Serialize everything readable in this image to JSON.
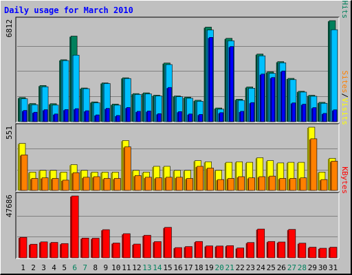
{
  "chart_data": [
    {
      "panel": "hits",
      "type": "bar",
      "title": "Daily usage for March 2010",
      "ymax_label": "6812",
      "ylabel_parts": [
        "Pages",
        "/",
        "Files",
        "/",
        "Hits"
      ],
      "ylim": [
        0,
        6812
      ],
      "grid": true,
      "series": [
        {
          "name": "Hits",
          "color": "#00805c",
          "values": [
            1630,
            1225,
            2440,
            1215,
            4175,
            5770,
            2270,
            1335,
            2615,
            1185,
            2960,
            1895,
            1945,
            1785,
            3955,
            1735,
            1650,
            1445,
            6375,
            925,
            5620,
            1515,
            2340,
            4560,
            3360,
            4050,
            2920,
            2050,
            1780,
            1305,
            6812
          ]
        },
        {
          "name": "Files",
          "color": "#00c0ff",
          "values": [
            1545,
            1145,
            2355,
            1120,
            4120,
            4485,
            2225,
            1275,
            2575,
            1115,
            2910,
            1840,
            1875,
            1735,
            3850,
            1685,
            1580,
            1375,
            6180,
            845,
            5455,
            1435,
            2255,
            4440,
            3260,
            3970,
            2835,
            1995,
            1715,
            1240,
            6200
          ]
        },
        {
          "name": "Pages",
          "color": "#0000ff",
          "values": [
            760,
            640,
            810,
            520,
            820,
            880,
            740,
            460,
            900,
            420,
            960,
            700,
            720,
            540,
            2310,
            680,
            520,
            490,
            5685,
            610,
            5070,
            700,
            1290,
            3210,
            2980,
            3420,
            1270,
            1180,
            950,
            560,
            800
          ]
        }
      ]
    },
    {
      "panel": "visits",
      "type": "bar",
      "ymax_label": "551",
      "ylabel_parts": [
        "Sites",
        "/",
        "Visits"
      ],
      "ylim": [
        0,
        551
      ],
      "grid": true,
      "series": [
        {
          "name": "Visits",
          "color": "#ffff00",
          "values": [
            410,
            160,
            175,
            175,
            160,
            225,
            175,
            160,
            160,
            160,
            435,
            175,
            160,
            210,
            210,
            175,
            175,
            260,
            250,
            175,
            245,
            250,
            245,
            285,
            260,
            240,
            245,
            245,
            551,
            160,
            280
          ]
        },
        {
          "name": "Sites",
          "color": "#ff8000",
          "values": [
            310,
            105,
            110,
            105,
            90,
            155,
            115,
            120,
            105,
            105,
            380,
            130,
            115,
            110,
            115,
            115,
            105,
            210,
            195,
            95,
            105,
            120,
            110,
            120,
            125,
            105,
            105,
            110,
            450,
            95,
            255
          ]
        }
      ]
    },
    {
      "panel": "kbytes",
      "type": "bar",
      "ymax_label": "47686",
      "ylabel_parts": [
        "KBytes"
      ],
      "ylim": [
        0,
        47686
      ],
      "grid": true,
      "series": [
        {
          "name": "KBytes",
          "color": "#ff0000",
          "values": [
            15800,
            10500,
            12300,
            11900,
            11000,
            47686,
            15200,
            15100,
            21700,
            11400,
            18600,
            10600,
            17400,
            12500,
            23500,
            7900,
            8700,
            12600,
            9200,
            9100,
            9400,
            7600,
            11800,
            22200,
            12600,
            12200,
            21900,
            11300,
            8200,
            7400,
            8200
          ]
        }
      ]
    }
  ],
  "x_axis": {
    "days": [
      "1",
      "2",
      "3",
      "4",
      "5",
      "6",
      "7",
      "8",
      "9",
      "10",
      "11",
      "12",
      "13",
      "14",
      "15",
      "16",
      "17",
      "18",
      "19",
      "20",
      "21",
      "22",
      "23",
      "24",
      "25",
      "26",
      "27",
      "28",
      "29",
      "30",
      "31"
    ],
    "weekend_days": [
      "6",
      "7",
      "13",
      "14",
      "20",
      "21",
      "27",
      "28"
    ],
    "weekday_color": "#000000",
    "weekend_color": "#00805c"
  },
  "colors": {
    "background": "#c0c0c0",
    "title": "#0000ff",
    "gridline": "#808080"
  }
}
